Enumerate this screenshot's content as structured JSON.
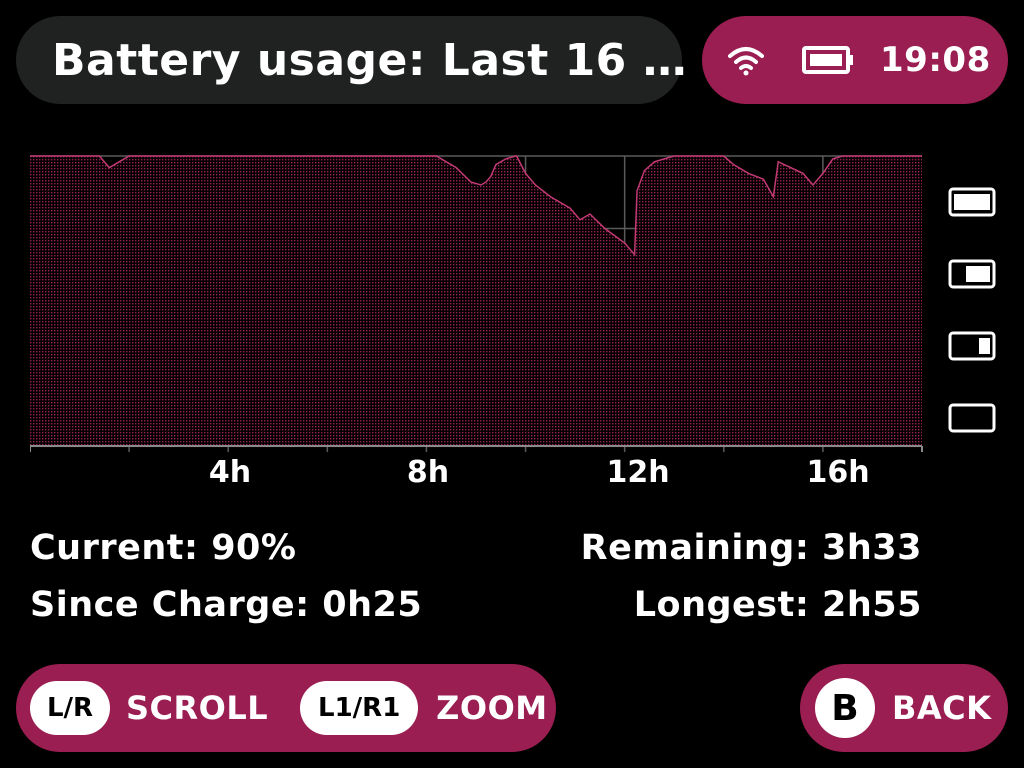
{
  "header": {
    "title": "Battery usage: Last 16 …",
    "status": {
      "wifi_icon": "wifi-icon",
      "battery_icon": "battery-icon",
      "time": "19:08"
    }
  },
  "chart_data": {
    "type": "area",
    "title": "",
    "xlabel": "",
    "ylabel": "",
    "x_unit": "hours",
    "xlim": [
      0,
      18
    ],
    "ylim": [
      0,
      100
    ],
    "x_ticks": [
      4,
      8,
      12,
      16
    ],
    "x_tick_labels": [
      "4h",
      "8h",
      "12h",
      "16h"
    ],
    "grid": true,
    "legend": "none",
    "y_level_icons": [
      "battery-full-icon",
      "battery-high-icon",
      "battery-low-icon",
      "battery-empty-icon"
    ],
    "series": [
      {
        "color": "#9a1e52",
        "x": [
          0,
          1.4,
          1.6,
          1.8,
          2.0,
          8.2,
          8.6,
          8.9,
          9.1,
          9.2,
          9.3,
          9.4,
          9.6,
          9.8,
          9.82,
          10.0,
          10.2,
          10.5,
          10.9,
          11.1,
          11.3,
          11.6,
          12.0,
          12.2,
          12.25,
          12.4,
          12.6,
          12.8,
          13.0,
          14.0,
          14.2,
          14.5,
          14.8,
          15.0,
          15.1,
          15.6,
          15.8,
          16.0,
          16.2,
          16.4,
          16.6,
          18.0
        ],
        "y": [
          100,
          100,
          96,
          98,
          100,
          100,
          96,
          91,
          90,
          91,
          93,
          97,
          99,
          100,
          100,
          94,
          90,
          86,
          82,
          78,
          80,
          75,
          70,
          66,
          88,
          95,
          98,
          99,
          100,
          100,
          97,
          94,
          92,
          86,
          98,
          94,
          90,
          94,
          99,
          100,
          100,
          100
        ]
      }
    ]
  },
  "stats": {
    "current": "Current: 90%",
    "since_charge": "Since Charge: 0h25",
    "remaining": "Remaining: 3h33",
    "longest": "Longest: 2h55"
  },
  "footer": {
    "scroll_button": "L/R",
    "scroll_label": "SCROLL",
    "zoom_button": "L1/R1",
    "zoom_label": "ZOOM",
    "back_button": "B",
    "back_label": "BACK"
  },
  "colors": {
    "accent": "#9a1e52",
    "title_bg": "#1f2220",
    "background": "#000000"
  }
}
